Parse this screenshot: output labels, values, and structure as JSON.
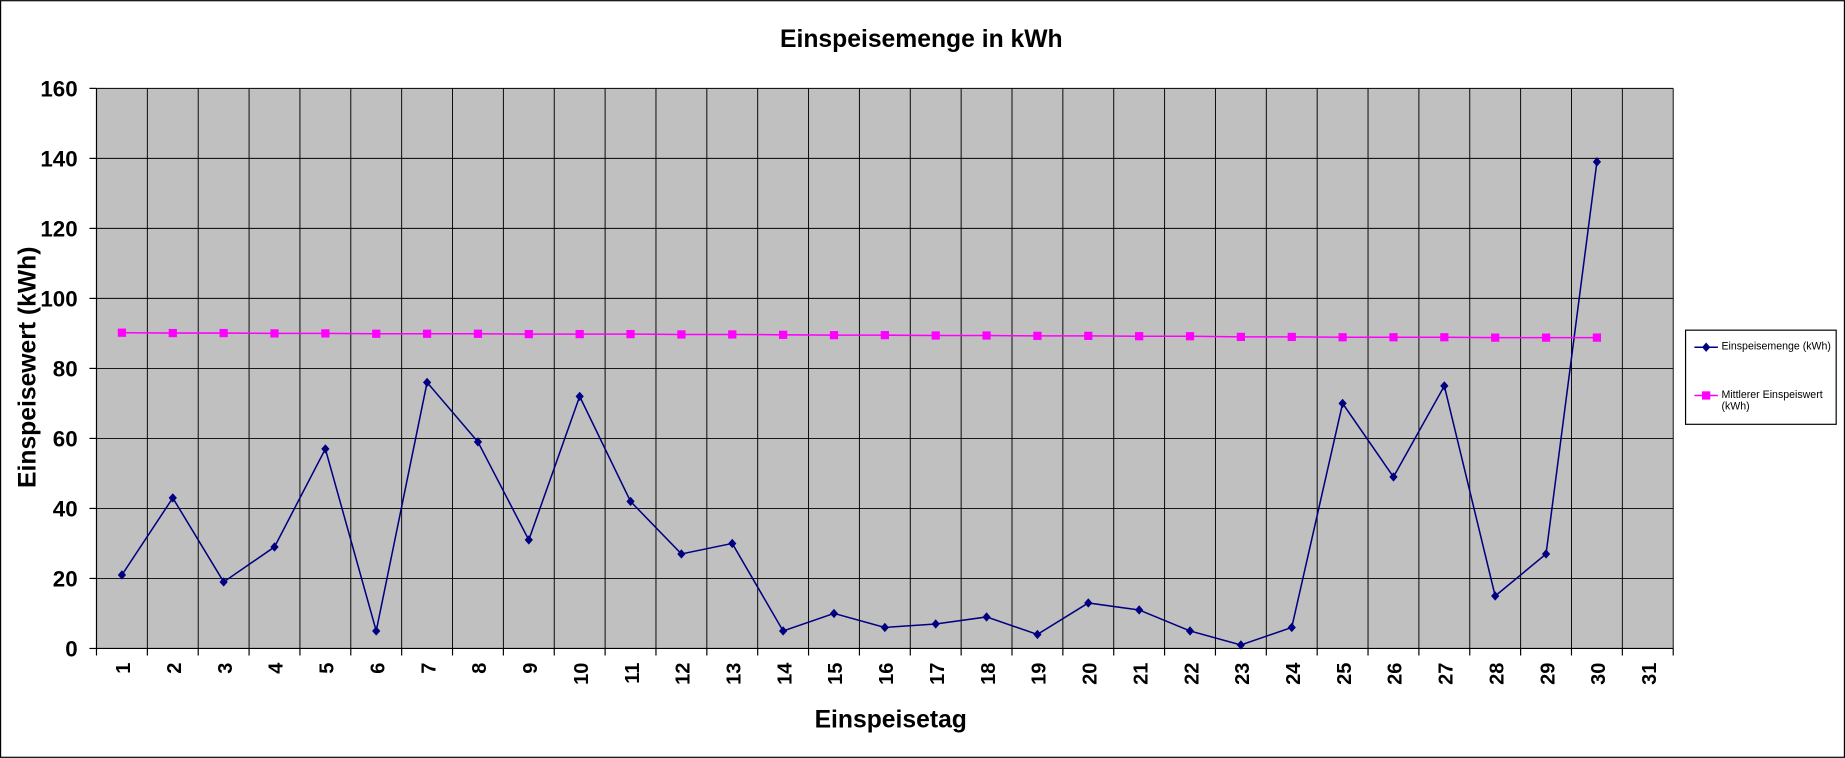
{
  "chart_data": {
    "type": "line",
    "title": "Einspeisemenge in kWh",
    "x_label": "Einspeisetag",
    "y_label": "Einspeisewert  (kWh)",
    "categories": [
      "1",
      "2",
      "3",
      "4",
      "5",
      "6",
      "7",
      "8",
      "9",
      "10",
      "11",
      "12",
      "13",
      "14",
      "15",
      "16",
      "17",
      "18",
      "19",
      "20",
      "21",
      "22",
      "23",
      "24",
      "25",
      "26",
      "27",
      "28",
      "29",
      "30",
      "31"
    ],
    "series": [
      {
        "name": "Einspeisemenge (kWh)",
        "color": "#000080",
        "marker": "diamond",
        "values": [
          21,
          43,
          19,
          29,
          57,
          5,
          76,
          59,
          31,
          72,
          42,
          27,
          30,
          5,
          10,
          6,
          7,
          9,
          4,
          13,
          11,
          5,
          1,
          6,
          70,
          49,
          75,
          15,
          27,
          139,
          null
        ]
      },
      {
        "name": "Mittlerer Einspeiswert (kWh)",
        "color": "#ff00ff",
        "marker": "square",
        "values": [
          90.2,
          90.1,
          90.1,
          90.0,
          90.0,
          89.9,
          89.9,
          89.9,
          89.8,
          89.8,
          89.8,
          89.7,
          89.7,
          89.6,
          89.5,
          89.5,
          89.4,
          89.4,
          89.3,
          89.3,
          89.2,
          89.2,
          89.0,
          89.0,
          88.9,
          88.9,
          88.9,
          88.8,
          88.8,
          88.8,
          null
        ]
      }
    ],
    "ylim": [
      0,
      160
    ],
    "yticks": [
      0,
      20,
      40,
      60,
      80,
      100,
      120,
      140,
      160
    ],
    "grid": true,
    "legend": "right"
  }
}
